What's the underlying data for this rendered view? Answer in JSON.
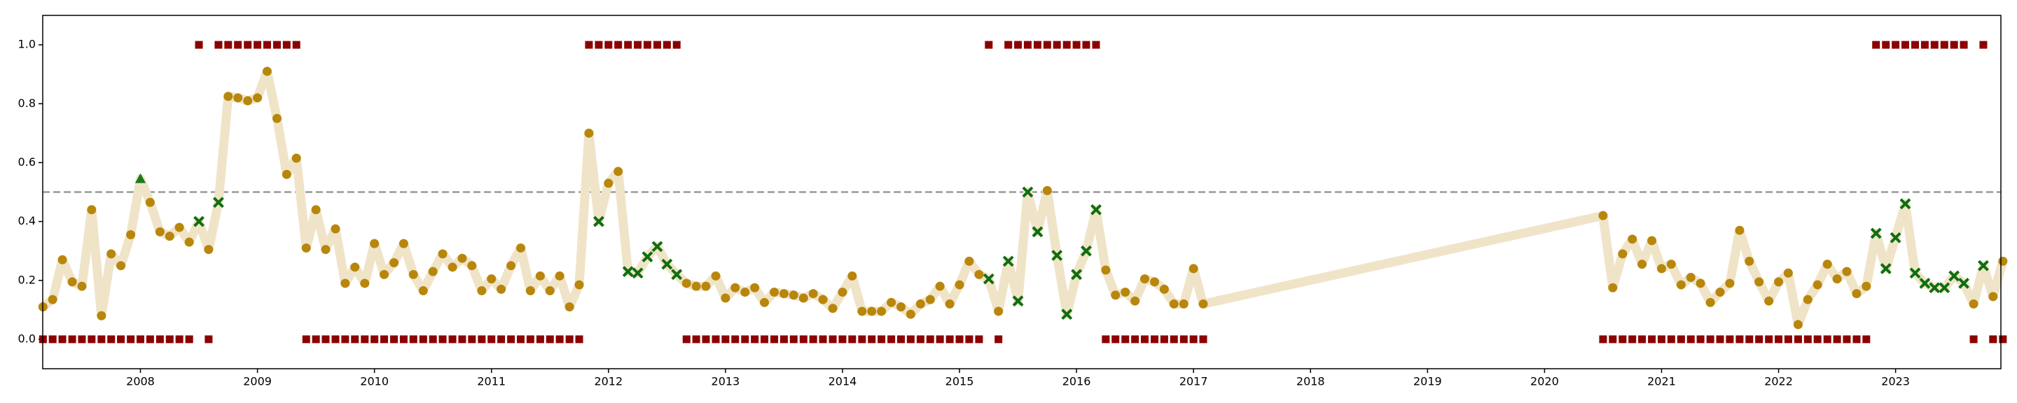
{
  "chart_data": {
    "type": "line",
    "x": [
      2007.167,
      2007.25,
      2007.333,
      2007.417,
      2007.5,
      2007.583,
      2007.667,
      2007.75,
      2007.833,
      2007.917,
      2008,
      2008.083,
      2008.167,
      2008.25,
      2008.333,
      2008.417,
      2008.5,
      2008.583,
      2008.667,
      2008.75,
      2008.833,
      2008.917,
      2009,
      2009.083,
      2009.167,
      2009.25,
      2009.333,
      2009.417,
      2009.5,
      2009.583,
      2009.667,
      2009.75,
      2009.833,
      2009.917,
      2010,
      2010.083,
      2010.167,
      2010.25,
      2010.333,
      2010.417,
      2010.5,
      2010.583,
      2010.667,
      2010.75,
      2010.833,
      2010.917,
      2011,
      2011.083,
      2011.167,
      2011.25,
      2011.333,
      2011.417,
      2011.5,
      2011.583,
      2011.667,
      2011.75,
      2011.833,
      2011.917,
      2012,
      2012.083,
      2012.167,
      2012.25,
      2012.333,
      2012.417,
      2012.5,
      2012.583,
      2012.667,
      2012.75,
      2012.833,
      2012.917,
      2013,
      2013.083,
      2013.167,
      2013.25,
      2013.333,
      2013.417,
      2013.5,
      2013.583,
      2013.667,
      2013.75,
      2013.833,
      2013.917,
      2014,
      2014.083,
      2014.167,
      2014.25,
      2014.333,
      2014.417,
      2014.5,
      2014.583,
      2014.667,
      2014.75,
      2014.833,
      2014.917,
      2015,
      2015.083,
      2015.167,
      2015.25,
      2015.333,
      2015.417,
      2015.5,
      2015.583,
      2015.667,
      2015.75,
      2015.833,
      2015.917,
      2016,
      2016.083,
      2016.167,
      2016.25,
      2016.333,
      2016.417,
      2016.5,
      2016.583,
      2016.667,
      2016.75,
      2016.833,
      2016.917,
      2017,
      2017.083,
      2020.5,
      2020.583,
      2020.667,
      2020.75,
      2020.833,
      2020.917,
      2021,
      2021.083,
      2021.167,
      2021.25,
      2021.333,
      2021.417,
      2021.5,
      2021.583,
      2021.667,
      2021.75,
      2021.833,
      2021.917,
      2022,
      2022.083,
      2022.167,
      2022.25,
      2022.333,
      2022.417,
      2022.5,
      2022.583,
      2022.667,
      2022.75,
      2022.833,
      2022.917,
      2023,
      2023.083,
      2023.167,
      2023.25,
      2023.333,
      2023.417,
      2023.5,
      2023.583,
      2023.667,
      2023.75,
      2023.833,
      2023.917
    ],
    "series": [
      {
        "color": "#f0e4c8",
        "marker_colors": {
          "o": "#b8860b",
          "x": "#0f6e0f",
          "^": "#1a7a1a"
        },
        "values": [
          0.11,
          0.135,
          0.27,
          0.195,
          0.18,
          0.44,
          0.08,
          0.29,
          0.25,
          0.355,
          0.545,
          0.465,
          0.365,
          0.35,
          0.38,
          0.33,
          0.4,
          0.305,
          0.465,
          0.825,
          0.82,
          0.81,
          0.82,
          0.91,
          0.75,
          0.56,
          0.615,
          0.31,
          0.44,
          0.305,
          0.375,
          0.19,
          0.245,
          0.19,
          0.325,
          0.22,
          0.26,
          0.325,
          0.22,
          0.165,
          0.23,
          0.29,
          0.245,
          0.275,
          0.25,
          0.165,
          0.205,
          0.17,
          0.25,
          0.31,
          0.165,
          0.215,
          0.165,
          0.215,
          0.11,
          0.185,
          0.7,
          0.4,
          0.53,
          0.57,
          0.23,
          0.225,
          0.28,
          0.315,
          0.255,
          0.22,
          0.19,
          0.18,
          0.18,
          0.215,
          0.14,
          0.175,
          0.16,
          0.175,
          0.125,
          0.16,
          0.155,
          0.15,
          0.14,
          0.155,
          0.135,
          0.105,
          0.16,
          0.215,
          0.095,
          0.095,
          0.095,
          0.125,
          0.11,
          0.085,
          0.12,
          0.135,
          0.18,
          0.12,
          0.185,
          0.265,
          0.22,
          0.205,
          0.095,
          0.265,
          0.13,
          0.5,
          0.365,
          0.505,
          0.285,
          0.085,
          0.22,
          0.3,
          0.44,
          0.235,
          0.15,
          0.16,
          0.13,
          0.205,
          0.195,
          0.17,
          0.12,
          0.12,
          0.24,
          0.12,
          0.42,
          0.175,
          0.29,
          0.34,
          0.255,
          0.335,
          0.24,
          0.255,
          0.185,
          0.21,
          0.19,
          0.125,
          0.16,
          0.19,
          0.37,
          0.265,
          0.195,
          0.13,
          0.195,
          0.225,
          0.05,
          0.135,
          0.185,
          0.255,
          0.205,
          0.23,
          0.155,
          0.18,
          0.36,
          0.24,
          0.345,
          0.46,
          0.225,
          0.19,
          0.175,
          0.175,
          0.215,
          0.19,
          0.12,
          0.25,
          0.145,
          0.265
        ],
        "markers": [
          "o",
          "o",
          "o",
          "o",
          "o",
          "o",
          "o",
          "o",
          "o",
          "o",
          "^",
          "o",
          "o",
          "o",
          "o",
          "o",
          "x",
          "o",
          "x",
          "o",
          "o",
          "o",
          "o",
          "o",
          "o",
          "o",
          "o",
          "o",
          "o",
          "o",
          "o",
          "o",
          "o",
          "o",
          "o",
          "o",
          "o",
          "o",
          "o",
          "o",
          "o",
          "o",
          "o",
          "o",
          "o",
          "o",
          "o",
          "o",
          "o",
          "o",
          "o",
          "o",
          "o",
          "o",
          "o",
          "o",
          "o",
          "x",
          "o",
          "o",
          "x",
          "x",
          "x",
          "x",
          "x",
          "x",
          "o",
          "o",
          "o",
          "o",
          "o",
          "o",
          "o",
          "o",
          "o",
          "o",
          "o",
          "o",
          "o",
          "o",
          "o",
          "o",
          "o",
          "o",
          "o",
          "o",
          "o",
          "o",
          "o",
          "o",
          "o",
          "o",
          "o",
          "o",
          "o",
          "o",
          "o",
          "x",
          "o",
          "x",
          "x",
          "x",
          "x",
          "o",
          "x",
          "x",
          "x",
          "x",
          "x",
          "o",
          "o",
          "o",
          "o",
          "o",
          "o",
          "o",
          "o",
          "o",
          "o",
          "o",
          "o",
          "o",
          "o",
          "o",
          "o",
          "o",
          "o",
          "o",
          "o",
          "o",
          "o",
          "o",
          "o",
          "o",
          "o",
          "o",
          "o",
          "o",
          "o",
          "o",
          "o",
          "o",
          "o",
          "o",
          "o",
          "o",
          "o",
          "o",
          "x",
          "x",
          "x",
          "x",
          "x",
          "x",
          "x",
          "x",
          "x",
          "x",
          "o",
          "x",
          "o",
          "o"
        ]
      },
      {
        "color": "#8b0000",
        "marker": "s",
        "values": [
          0,
          0,
          0,
          0,
          0,
          0,
          0,
          0,
          0,
          0,
          0,
          0,
          0,
          0,
          0,
          0,
          1,
          0,
          1,
          1,
          1,
          1,
          1,
          1,
          1,
          1,
          1,
          0,
          0,
          0,
          0,
          0,
          0,
          0,
          0,
          0,
          0,
          0,
          0,
          0,
          0,
          0,
          0,
          0,
          0,
          0,
          0,
          0,
          0,
          0,
          0,
          0,
          0,
          0,
          0,
          0,
          1,
          1,
          1,
          1,
          1,
          1,
          1,
          1,
          1,
          1,
          0,
          0,
          0,
          0,
          0,
          0,
          0,
          0,
          0,
          0,
          0,
          0,
          0,
          0,
          0,
          0,
          0,
          0,
          0,
          0,
          0,
          0,
          0,
          0,
          0,
          0,
          0,
          0,
          0,
          0,
          0,
          1,
          0,
          1,
          1,
          1,
          1,
          1,
          1,
          1,
          1,
          1,
          1,
          0,
          0,
          0,
          0,
          0,
          0,
          0,
          0,
          0,
          0,
          0,
          0,
          0,
          0,
          0,
          0,
          0,
          0,
          0,
          0,
          0,
          0,
          0,
          0,
          0,
          0,
          0,
          0,
          0,
          0,
          0,
          0,
          0,
          0,
          0,
          0,
          0,
          0,
          0,
          1,
          1,
          1,
          1,
          1,
          1,
          1,
          1,
          1,
          1,
          0,
          1,
          0,
          0
        ]
      }
    ],
    "hline": 0.5,
    "xlim": [
      2007.165,
      2023.9
    ],
    "xticks": [
      2008,
      2009,
      2010,
      2011,
      2012,
      2013,
      2014,
      2015,
      2016,
      2017,
      2018,
      2019,
      2020,
      2021,
      2022,
      2023
    ],
    "ylim": [
      -0.1,
      1.1
    ],
    "yticks": [
      {
        "value": 0,
        "label": "0.0"
      },
      0.2,
      0.4,
      0.6,
      0.8,
      {
        "value": 1,
        "label": "1.0"
      }
    ]
  }
}
